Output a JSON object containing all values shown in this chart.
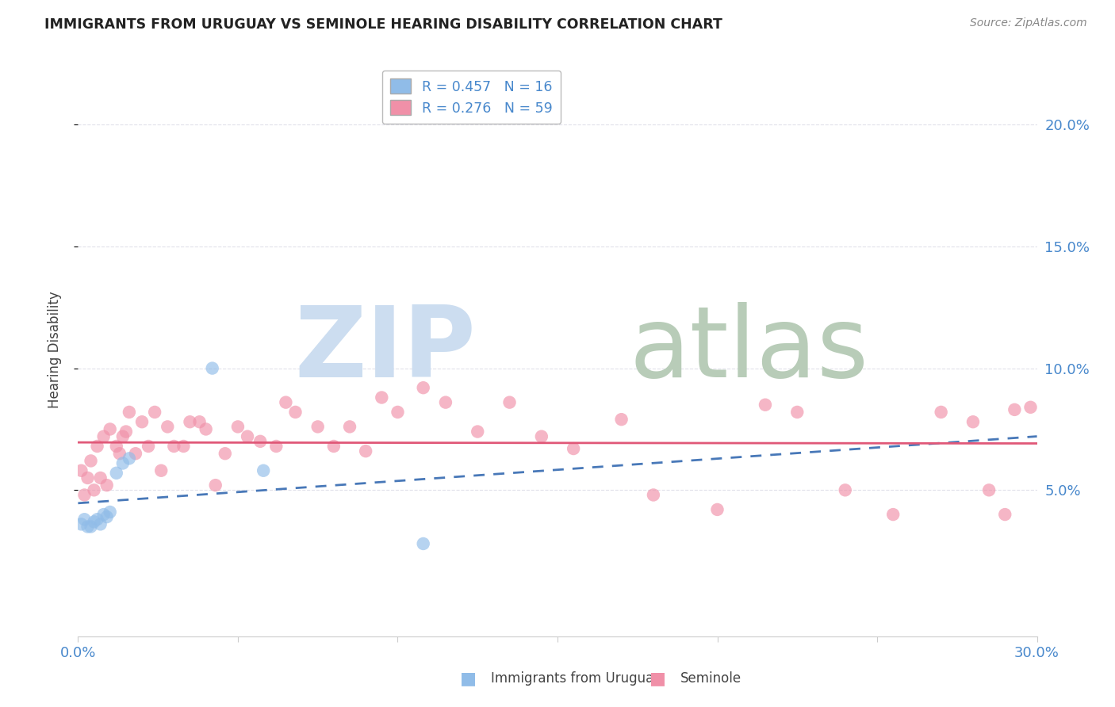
{
  "title": "IMMIGRANTS FROM URUGUAY VS SEMINOLE HEARING DISABILITY CORRELATION CHART",
  "source": "Source: ZipAtlas.com",
  "ylabel": "Hearing Disability",
  "xlim": [
    0.0,
    0.3
  ],
  "ylim": [
    -0.01,
    0.225
  ],
  "yticks_right": [
    0.05,
    0.1,
    0.15,
    0.2
  ],
  "ytick_right_labels": [
    "5.0%",
    "10.0%",
    "15.0%",
    "20.0%"
  ],
  "xticks": [
    0.0,
    0.05,
    0.1,
    0.15,
    0.2,
    0.25,
    0.3
  ],
  "xtick_labels": [
    "0.0%",
    "",
    "",
    "",
    "",
    "",
    "30.0%"
  ],
  "uruguay_color": "#90bce8",
  "seminole_color": "#f090a8",
  "uruguay_line_color": "#4878b8",
  "seminole_line_color": "#e05878",
  "grid_color": "#e0e0ea",
  "axis_color": "#cccccc",
  "title_color": "#222222",
  "source_color": "#888888",
  "tick_label_color": "#4888cc",
  "ylabel_color": "#444444",
  "watermark_zip_color": "#ccddf0",
  "watermark_atlas_color": "#b8ccb8",
  "legend_label1": "Immigrants from Uruguay",
  "legend_label2": "Seminole",
  "uruguay_x": [
    0.001,
    0.002,
    0.003,
    0.004,
    0.005,
    0.006,
    0.007,
    0.008,
    0.009,
    0.01,
    0.012,
    0.014,
    0.016,
    0.042,
    0.058,
    0.108
  ],
  "uruguay_y": [
    0.036,
    0.038,
    0.035,
    0.035,
    0.037,
    0.038,
    0.036,
    0.04,
    0.039,
    0.041,
    0.057,
    0.061,
    0.063,
    0.1,
    0.058,
    0.028
  ],
  "seminole_x": [
    0.001,
    0.002,
    0.003,
    0.004,
    0.005,
    0.006,
    0.007,
    0.008,
    0.009,
    0.01,
    0.012,
    0.013,
    0.014,
    0.015,
    0.016,
    0.018,
    0.02,
    0.022,
    0.024,
    0.026,
    0.028,
    0.03,
    0.033,
    0.035,
    0.038,
    0.04,
    0.043,
    0.046,
    0.05,
    0.053,
    0.057,
    0.062,
    0.065,
    0.068,
    0.075,
    0.08,
    0.085,
    0.09,
    0.095,
    0.1,
    0.108,
    0.115,
    0.125,
    0.135,
    0.145,
    0.155,
    0.17,
    0.18,
    0.2,
    0.215,
    0.225,
    0.24,
    0.255,
    0.27,
    0.28,
    0.285,
    0.29,
    0.293,
    0.298
  ],
  "seminole_y": [
    0.058,
    0.048,
    0.055,
    0.062,
    0.05,
    0.068,
    0.055,
    0.072,
    0.052,
    0.075,
    0.068,
    0.065,
    0.072,
    0.074,
    0.082,
    0.065,
    0.078,
    0.068,
    0.082,
    0.058,
    0.076,
    0.068,
    0.068,
    0.078,
    0.078,
    0.075,
    0.052,
    0.065,
    0.076,
    0.072,
    0.07,
    0.068,
    0.086,
    0.082,
    0.076,
    0.068,
    0.076,
    0.066,
    0.088,
    0.082,
    0.092,
    0.086,
    0.074,
    0.086,
    0.072,
    0.067,
    0.079,
    0.048,
    0.042,
    0.085,
    0.082,
    0.05,
    0.04,
    0.082,
    0.078,
    0.05,
    0.04,
    0.083,
    0.084
  ]
}
